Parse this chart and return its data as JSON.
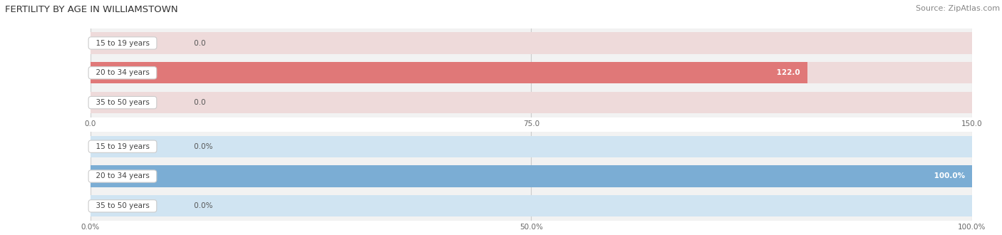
{
  "title": "FERTILITY BY AGE IN WILLIAMSTOWN",
  "source": "Source: ZipAtlas.com",
  "top_chart": {
    "categories": [
      "15 to 19 years",
      "20 to 34 years",
      "35 to 50 years"
    ],
    "values": [
      0.0,
      122.0,
      0.0
    ],
    "xlim": [
      0,
      150
    ],
    "xticks": [
      0.0,
      75.0,
      150.0
    ],
    "xtick_labels": [
      "0.0",
      "75.0",
      "150.0"
    ],
    "bar_color": "#E07878",
    "bar_bg_color": "#EEDADA",
    "value_labels": [
      "0.0",
      "122.0",
      "0.0"
    ]
  },
  "bottom_chart": {
    "categories": [
      "15 to 19 years",
      "20 to 34 years",
      "35 to 50 years"
    ],
    "values": [
      0.0,
      100.0,
      0.0
    ],
    "xlim": [
      0,
      100
    ],
    "xticks": [
      0.0,
      50.0,
      100.0
    ],
    "xtick_labels": [
      "0.0%",
      "50.0%",
      "100.0%"
    ],
    "bar_color": "#7BADD4",
    "bar_bg_color": "#D0E4F2",
    "value_labels": [
      "0.0%",
      "100.0%",
      "0.0%"
    ]
  },
  "label_bg_color": "#FFFFFF",
  "label_text_color": "#444444",
  "bar_height": 0.72,
  "title_color": "#333333",
  "source_color": "#888888",
  "grid_color": "#CCCCCC",
  "chart_bg_color": "#F2F2F2"
}
